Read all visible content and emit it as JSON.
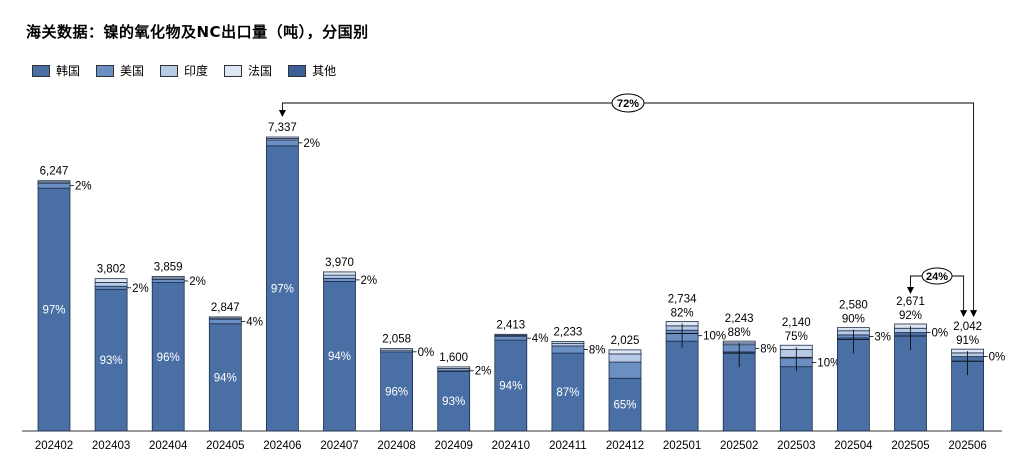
{
  "title": "海关数据：镍的氧化物及NC出口量（吨），分国别",
  "colors": {
    "韩国": "#4a6fa5",
    "美国": "#6b8fc2",
    "印度": "#b8cbe6",
    "法国": "#dde6f2",
    "其他": "#3d5f98"
  },
  "chart_data": {
    "type": "bar",
    "stacked": true,
    "categories": [
      "202402",
      "202403",
      "202404",
      "202405",
      "202406",
      "202407",
      "202408",
      "202409",
      "202410",
      "202411",
      "202412",
      "202501",
      "202502",
      "202503",
      "202504",
      "202505",
      "202506"
    ],
    "totals": [
      6247,
      3802,
      3859,
      2847,
      7337,
      3970,
      2058,
      1600,
      2413,
      2233,
      2025,
      2734,
      2243,
      2140,
      2580,
      2671,
      2042
    ],
    "total_labels": [
      "6,247",
      "3,802",
      "3,859",
      "2,847",
      "7,337",
      "3,970",
      "2,058",
      "1,600",
      "2,413",
      "2,233",
      "2,025",
      "2,734",
      "2,243",
      "2,140",
      "2,580",
      "2,671",
      "2,042"
    ],
    "korea_share_labels": [
      "97%",
      "93%",
      "96%",
      "94%",
      "97%",
      "94%",
      "96%",
      "93%",
      "94%",
      "87%",
      "65%",
      "82%",
      "88%",
      "75%",
      "90%",
      "92%",
      "91%"
    ],
    "us_share_labels": [
      "2%",
      "2%",
      "2%",
      "4%",
      "2%",
      "2%",
      "0%",
      "2%",
      "4%",
      "8%",
      "",
      "10%",
      "8%",
      "10%",
      "3%",
      "0%",
      "0%"
    ],
    "series": [
      {
        "name": "韩国",
        "values": [
          6060,
          3536,
          3705,
          2676,
          7117,
          3732,
          1976,
          1488,
          2268,
          1943,
          1316,
          2242,
          1974,
          1605,
          2322,
          2457,
          1858
        ]
      },
      {
        "name": "美国",
        "values": [
          125,
          76,
          77,
          114,
          147,
          79,
          0,
          32,
          97,
          179,
          405,
          273,
          179,
          214,
          77,
          0,
          0
        ]
      },
      {
        "name": "印度",
        "values": [
          31,
          95,
          39,
          28,
          37,
          79,
          41,
          40,
          24,
          67,
          202,
          109,
          45,
          214,
          103,
          107,
          92
        ]
      },
      {
        "name": "法国",
        "values": [
          31,
          95,
          38,
          29,
          36,
          80,
          41,
          40,
          24,
          44,
          102,
          110,
          45,
          107,
          78,
          107,
          92
        ]
      },
      {
        "name": "其他",
        "values": [
          0,
          0,
          0,
          0,
          0,
          0,
          0,
          0,
          0,
          0,
          0,
          0,
          0,
          0,
          0,
          0,
          0
        ]
      }
    ],
    "ylim": [
      0,
      7600
    ],
    "annotations": [
      {
        "label": "72%",
        "from": "202406",
        "to": "202506"
      },
      {
        "label": "24%",
        "from": "202505",
        "to": "202506"
      }
    ]
  }
}
